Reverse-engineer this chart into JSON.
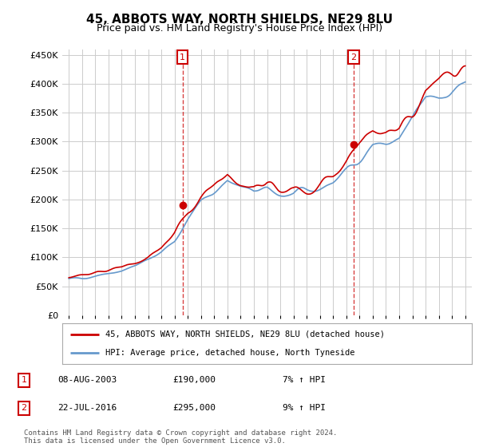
{
  "title": "45, ABBOTS WAY, NORTH SHIELDS, NE29 8LU",
  "subtitle": "Price paid vs. HM Land Registry's House Price Index (HPI)",
  "ylim": [
    0,
    460000
  ],
  "yticks": [
    0,
    50000,
    100000,
    150000,
    200000,
    250000,
    300000,
    350000,
    400000,
    450000
  ],
  "xlim_start": 1994.5,
  "xlim_end": 2025.5,
  "background_color": "#ffffff",
  "grid_color": "#cccccc",
  "red_line_color": "#cc0000",
  "blue_line_color": "#6699cc",
  "marker1_x": 2003.6,
  "marker1_y": 190000,
  "marker2_x": 2016.55,
  "marker2_y": 295000,
  "annotation1_label": "1",
  "annotation2_label": "2",
  "ann1_date": "08-AUG-2003",
  "ann1_price": "£190,000",
  "ann1_hpi": "7% ↑ HPI",
  "ann2_date": "22-JUL-2016",
  "ann2_price": "£295,000",
  "ann2_hpi": "9% ↑ HPI",
  "legend_label1": "45, ABBOTS WAY, NORTH SHIELDS, NE29 8LU (detached house)",
  "legend_label2": "HPI: Average price, detached house, North Tyneside",
  "footer": "Contains HM Land Registry data © Crown copyright and database right 2024.\nThis data is licensed under the Open Government Licence v3.0.",
  "years": [
    1995,
    1996,
    1997,
    1998,
    1999,
    2000,
    2001,
    2002,
    2003,
    2004,
    2005,
    2006,
    2007,
    2008,
    2009,
    2010,
    2011,
    2012,
    2013,
    2014,
    2015,
    2016,
    2017,
    2018,
    2019,
    2020,
    2021,
    2022,
    2023,
    2024,
    2025
  ],
  "hpi_values": [
    62000,
    65000,
    70000,
    74000,
    78000,
    85000,
    95000,
    110000,
    130000,
    165000,
    195000,
    215000,
    235000,
    220000,
    210000,
    215000,
    210000,
    205000,
    210000,
    220000,
    230000,
    250000,
    275000,
    295000,
    295000,
    300000,
    330000,
    370000,
    380000,
    395000,
    405000
  ],
  "red_values": [
    65000,
    68000,
    73000,
    77000,
    81000,
    89000,
    100000,
    116000,
    140000,
    178000,
    205000,
    225000,
    248000,
    232000,
    222000,
    227000,
    218000,
    212000,
    218000,
    230000,
    242000,
    265000,
    295000,
    315000,
    310000,
    318000,
    350000,
    390000,
    400000,
    415000,
    420000
  ]
}
